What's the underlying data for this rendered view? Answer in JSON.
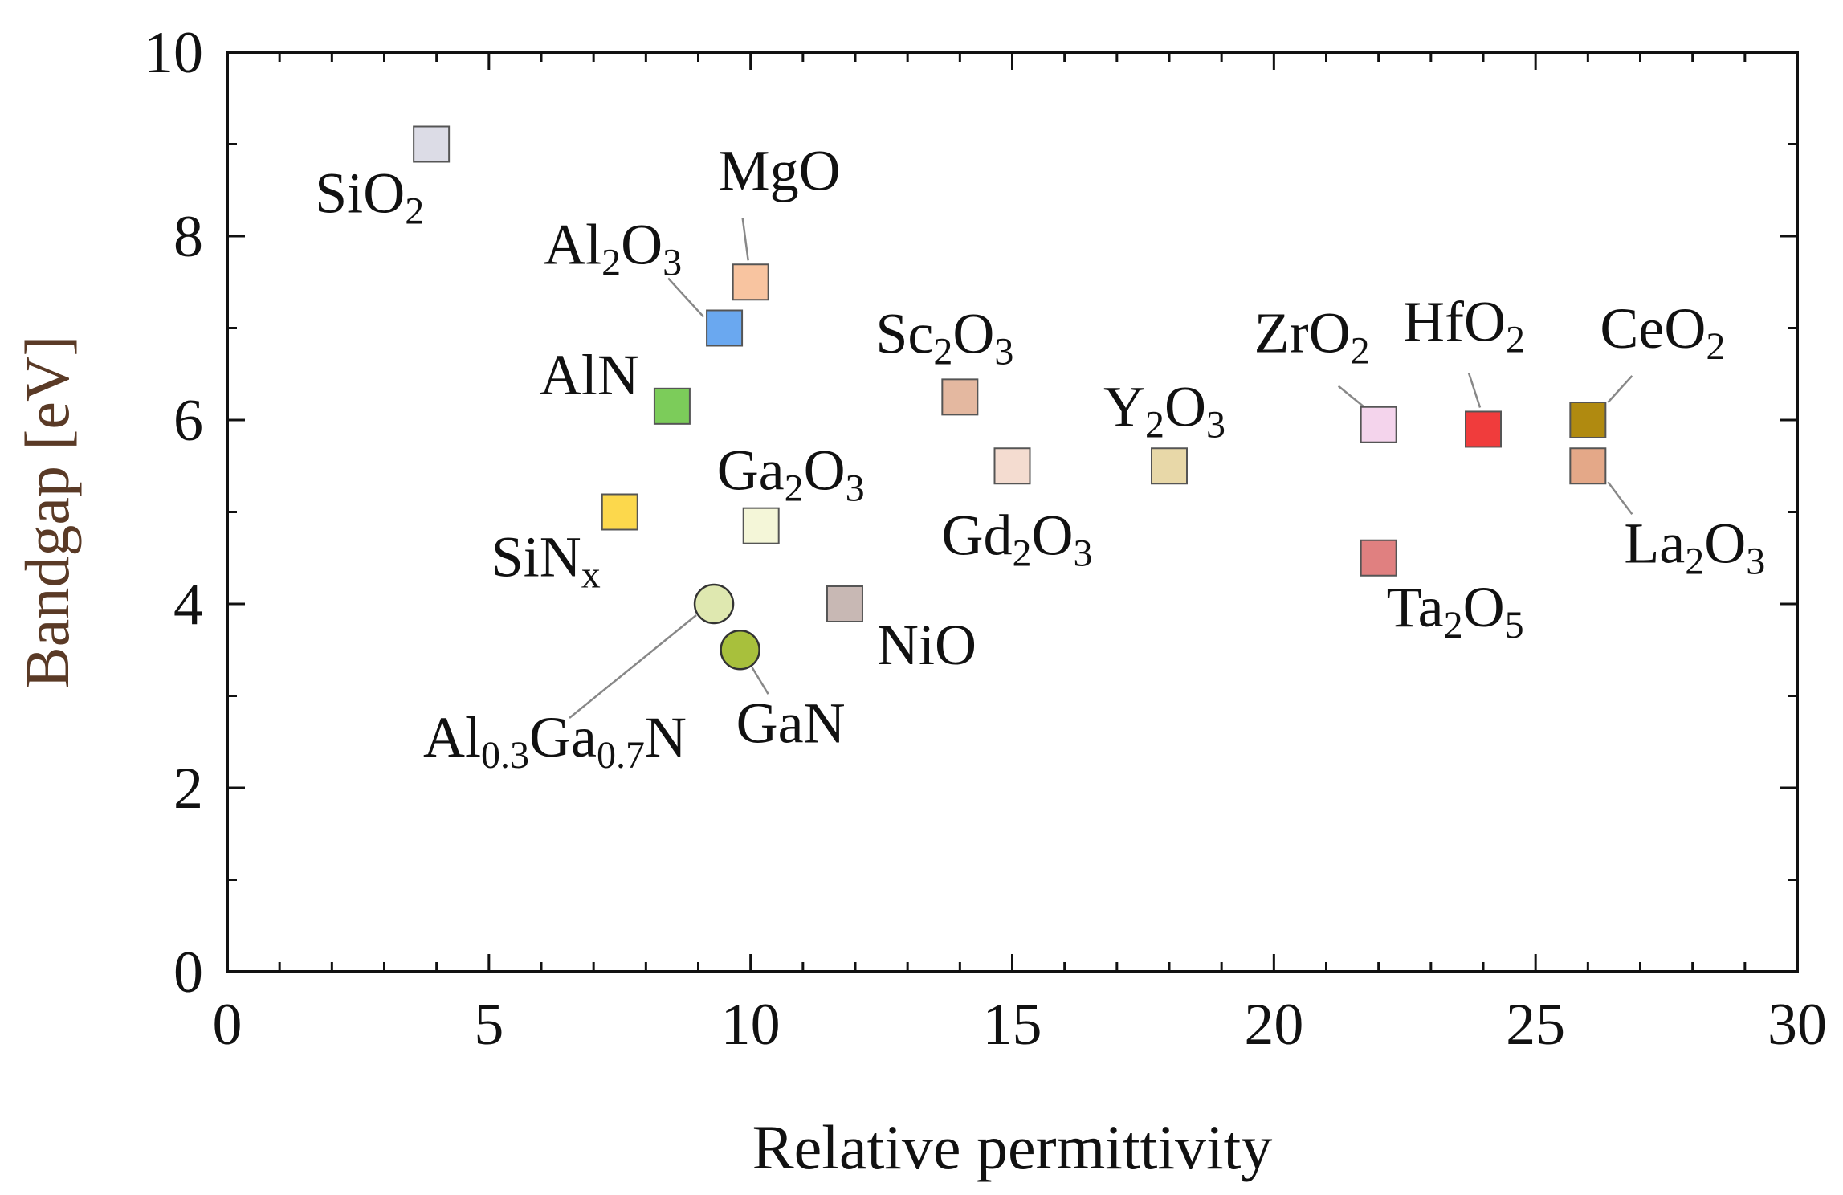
{
  "chart_data": {
    "type": "scatter",
    "title": "",
    "xlabel": "Relative permittivity",
    "ylabel": "Bandgap [eV]",
    "xlim": [
      0,
      30
    ],
    "ylim": [
      0,
      10
    ],
    "xticks": [
      "0",
      "5",
      "10",
      "15",
      "20",
      "25",
      "30"
    ],
    "yticks": [
      "0",
      "2",
      "4",
      "6",
      "8",
      "10"
    ],
    "colors": {
      "ylabel": "#5a3a26",
      "axis": "#111111",
      "leader": "#888888"
    },
    "points": [
      {
        "id": "sio2",
        "x": 3.9,
        "y": 9.0,
        "shape": "square",
        "color": "#dcdce6",
        "label": [
          [
            "Si",
            0
          ],
          [
            "O",
            0
          ],
          [
            "2",
            1
          ]
        ]
      },
      {
        "id": "mgo",
        "x": 10.0,
        "y": 7.5,
        "shape": "square",
        "color": "#f8c4a0",
        "label": [
          [
            "MgO",
            0
          ]
        ]
      },
      {
        "id": "al2o3",
        "x": 9.5,
        "y": 7.0,
        "shape": "square",
        "color": "#6aa8f0",
        "label": [
          [
            "Al",
            0
          ],
          [
            "2",
            1
          ],
          [
            "O",
            0
          ],
          [
            "3",
            1
          ]
        ]
      },
      {
        "id": "aln",
        "x": 8.5,
        "y": 6.15,
        "shape": "square",
        "color": "#7ccc5a",
        "label": [
          [
            "AlN",
            0
          ]
        ]
      },
      {
        "id": "sc2o3",
        "x": 14.0,
        "y": 6.25,
        "shape": "square",
        "color": "#e4b8a0",
        "label": [
          [
            "Sc",
            0
          ],
          [
            "2",
            1
          ],
          [
            "O",
            0
          ],
          [
            "3",
            1
          ]
        ]
      },
      {
        "id": "gd2o3",
        "x": 15.0,
        "y": 5.5,
        "shape": "square",
        "color": "#f4dcd0",
        "label": [
          [
            "Gd",
            0
          ],
          [
            "2",
            1
          ],
          [
            "O",
            0
          ],
          [
            "3",
            1
          ]
        ]
      },
      {
        "id": "y2o3",
        "x": 18.0,
        "y": 5.5,
        "shape": "square",
        "color": "#e8d8a8",
        "label": [
          [
            "Y",
            0
          ],
          [
            "2",
            1
          ],
          [
            "O",
            0
          ],
          [
            "3",
            1
          ]
        ]
      },
      {
        "id": "ga2o3",
        "x": 10.2,
        "y": 4.85,
        "shape": "square",
        "color": "#f4f6d8",
        "label": [
          [
            "Ga",
            0
          ],
          [
            "2",
            1
          ],
          [
            "O",
            0
          ],
          [
            "3",
            1
          ]
        ]
      },
      {
        "id": "sinx",
        "x": 7.5,
        "y": 5.0,
        "shape": "square",
        "color": "#fcd84c",
        "label": [
          [
            "SiN",
            0
          ],
          [
            "x",
            1
          ]
        ]
      },
      {
        "id": "nio",
        "x": 11.8,
        "y": 4.0,
        "shape": "square",
        "color": "#c8b8b4",
        "label": [
          [
            "NiO",
            0
          ]
        ]
      },
      {
        "id": "algan",
        "x": 9.3,
        "y": 4.0,
        "shape": "circle",
        "color": "#dfe8b0",
        "label": [
          [
            "Al",
            0
          ],
          [
            "0.3",
            1
          ],
          [
            "Ga",
            0
          ],
          [
            "0.7",
            1
          ],
          [
            "N",
            0
          ]
        ]
      },
      {
        "id": "gan",
        "x": 9.8,
        "y": 3.5,
        "shape": "circle",
        "color": "#a8c03c",
        "label": [
          [
            "GaN",
            0
          ]
        ]
      },
      {
        "id": "zro2",
        "x": 22.0,
        "y": 5.95,
        "shape": "square",
        "color": "#f4d4ec",
        "label": [
          [
            "Zr",
            0
          ],
          [
            "O",
            0
          ],
          [
            "2",
            1
          ]
        ]
      },
      {
        "id": "hfo2",
        "x": 24.0,
        "y": 5.9,
        "shape": "square",
        "color": "#f03c3c",
        "label": [
          [
            "Hf",
            0
          ],
          [
            "O",
            0
          ],
          [
            "2",
            1
          ]
        ]
      },
      {
        "id": "ceo2",
        "x": 26.0,
        "y": 6.0,
        "shape": "square",
        "color": "#b08a10",
        "label": [
          [
            "Ce",
            0
          ],
          [
            "O",
            0
          ],
          [
            "2",
            1
          ]
        ]
      },
      {
        "id": "la2o3",
        "x": 26.0,
        "y": 5.5,
        "shape": "square",
        "color": "#e4a888",
        "label": [
          [
            "La",
            0
          ],
          [
            "2",
            1
          ],
          [
            "O",
            0
          ],
          [
            "3",
            1
          ]
        ]
      },
      {
        "id": "ta2o5",
        "x": 22.0,
        "y": 4.5,
        "shape": "square",
        "color": "#e08080",
        "label": [
          [
            "Ta",
            0
          ],
          [
            "2",
            1
          ],
          [
            "O",
            0
          ],
          [
            "5",
            1
          ]
        ]
      }
    ]
  }
}
